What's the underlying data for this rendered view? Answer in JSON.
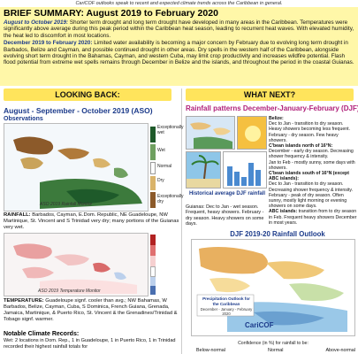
{
  "topline": "CariCOF outlooks speak to recent and expected climate trends across the Caribbean in general.",
  "summary": {
    "title": "BRIEF SUMMARY: August 2019 to February 2020",
    "p1_lead": "August to October 2019:",
    "p1_text": " Shorter term drought and long term drought have developed in many areas in the Caribbean. Temperatures were significantly above average during this peak period within the Caribbean heat season, leading to recurrent heat waves. With elevated humidity, the heat led to discomfort in most locations.",
    "p2_lead": "December 2019 to February 2020:",
    "p2_text": " Limited water availability is becoming a major concern by February due to evolving long term drought in Barbados, Belize and Cayman, and possible continued drought in other areas. Dry spells in the western half of the Caribbean, alongside evolving short term drought in the Bahamas, Cayman, and western Cuba, may limit crop productivity and increases wildfire potential. Flash flood potential from extreme wet spells remains through December in Belize and the islands, and throughout the period in the coastal Guianas."
  },
  "looking_back": {
    "header": "LOOKING BACK:",
    "title": "August - September - October 2019 (ASO)",
    "obs_label": "Observations",
    "rain_legend": [
      "Exceptionally wet",
      "Wet",
      "Normal",
      "Dry",
      "Exceptionally dry"
    ],
    "rain_caption": "ASO 2019 Rainfall Monitor",
    "rain_note_lead": "RAINFALL:",
    "rain_note": " Barbados, Cayman, E.Dom. Republic, NE Guadeloupe, NW Martinique, St. Vincent and S Trinidad very dry; many portions of the Guianas very wet.",
    "temp_caption": "ASO 2019 Temperature Monitor",
    "temp_note_lead": "TEMPERATURE:",
    "temp_note": " Guadeloupe signf. cooler than avg.; NW Bahamas, W Barbados, Belize, Cayman, Cuba, S Dominica, French Guiana, Grenada, Jamaica, Martinique, & Puerto Rico, St. Vincent & the Grenadines/Trinidad & Tobago signf. warmer.",
    "notable_title": "Notable Climate Records:",
    "notable_text": "Wet: 2 locations in Dom. Rep., 1 in Guadeloupe, 1 in Puerto Rico, 1 in Trinidad recorded their highest rainfall totals for"
  },
  "what_next": {
    "header": "WHAT NEXT?",
    "title": "Rainfall patterns December-January-February (DJF)",
    "hist_caption": "Historical average DJF rainfall",
    "left_text": "Guianas: Dec to Jan - wet season. Frequent, heavy showers. February - dry season. Heavy showers on some days.",
    "right_text": [
      {
        "b": "Belize:",
        "t": ""
      },
      {
        "b": "",
        "t": "Dec to Jan - transition to dry season. Heavy showers becoming less frequent."
      },
      {
        "b": "",
        "t": "February - dry season. Few heavy showers."
      },
      {
        "b": "C'bean islands north of 16°N:",
        "t": ""
      },
      {
        "b": "",
        "t": "December - early dry season. Decreasing shower frequency & intensity."
      },
      {
        "b": "",
        "t": "Jan to Feb - mostly sunny, some days with showers."
      },
      {
        "b": "C'bean islands south of 16°N (except ABC islands):",
        "t": ""
      },
      {
        "b": "",
        "t": "Dec to Jan - transition to dry season. Decreasing shower frequency & intensity."
      },
      {
        "b": "",
        "t": "February - peak of dry season. Often sunny, mostly light morning or evening showers on some days."
      },
      {
        "b": "ABC islands:",
        "t": " transition from to dry season in Feb. Frequent heavy showers December in most years."
      }
    ],
    "outlook_title": "DJF 2019-20 Rainfall Outlook",
    "outlook_map_title": "Precipitation Outlook for the Caribbean",
    "outlook_map_sub": "December - January - February 2020",
    "outlook_logo": "CariCOF",
    "outlook_caption": "Confidence (in %) for rainfall to be:",
    "outlook_legend": [
      "Below-normal",
      "Normal",
      "Above-normal"
    ]
  },
  "colors": {
    "summary_bg": "#fff7a8",
    "header_bg": "#ffe45c",
    "accent_blue": "#1b3a8a",
    "accent_magenta": "#b0207a"
  }
}
